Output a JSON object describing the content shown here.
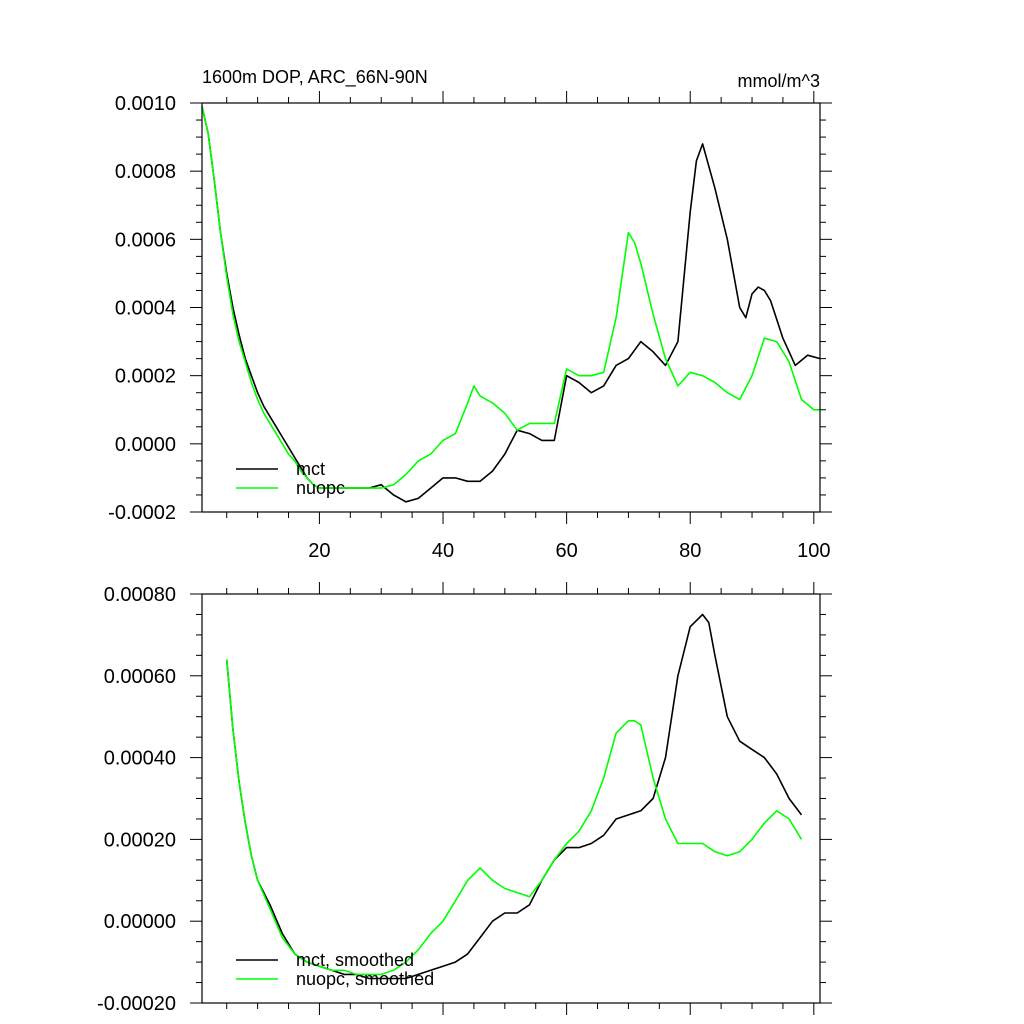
{
  "chart_data": [
    {
      "type": "line",
      "title": "1600m DOP, ARC_66N-90N",
      "units": "mmol/m^3",
      "xlabel": "",
      "ylabel": "",
      "xlim": [
        1,
        101
      ],
      "ylim": [
        -0.0002,
        0.001
      ],
      "xticks": [
        20,
        40,
        60,
        80,
        100
      ],
      "xtick_labels": [
        "20",
        "40",
        "60",
        "80",
        "100"
      ],
      "yticks": [
        -0.0002,
        0,
        0.0002,
        0.0004,
        0.0006,
        0.0008,
        0.001
      ],
      "ytick_labels": [
        "-0.0002",
        "0.0000",
        "0.0002",
        "0.0004",
        "0.0006",
        "0.0008",
        "0.0010"
      ],
      "legend_position": "bottom-left",
      "series": [
        {
          "name": "mct",
          "color": "#000000",
          "x": [
            1,
            2,
            3,
            4,
            5,
            6,
            7,
            8,
            9,
            10,
            11,
            12,
            13,
            14,
            15,
            16,
            17,
            18,
            19,
            20,
            22,
            24,
            26,
            28,
            30,
            32,
            34,
            36,
            38,
            40,
            42,
            44,
            46,
            48,
            50,
            52,
            54,
            56,
            58,
            60,
            62,
            64,
            66,
            68,
            70,
            72,
            74,
            76,
            78,
            80,
            81,
            82,
            84,
            86,
            88,
            89,
            90,
            91,
            92,
            93,
            95,
            97,
            99,
            101
          ],
          "y": [
            0.00099,
            0.00091,
            0.00077,
            0.00062,
            0.0005,
            0.0004,
            0.00032,
            0.00025,
            0.0002,
            0.00015,
            0.00011,
            8e-05,
            5e-05,
            2e-05,
            -1e-05,
            -4e-05,
            -7e-05,
            -0.0001,
            -0.00012,
            -0.00013,
            -0.00013,
            -0.00013,
            -0.00013,
            -0.00013,
            -0.00012,
            -0.00015,
            -0.00017,
            -0.00016,
            -0.00013,
            -0.0001,
            -0.0001,
            -0.00011,
            -0.00011,
            -8e-05,
            -3e-05,
            4e-05,
            3e-05,
            1e-05,
            1e-05,
            0.0002,
            0.00018,
            0.00015,
            0.00017,
            0.00023,
            0.00025,
            0.0003,
            0.00027,
            0.00023,
            0.0003,
            0.00068,
            0.00083,
            0.00088,
            0.00075,
            0.0006,
            0.0004,
            0.00037,
            0.00044,
            0.00046,
            0.00045,
            0.00042,
            0.00031,
            0.00023,
            0.00026,
            0.00025
          ]
        },
        {
          "name": "nuopc",
          "color": "#00ff00",
          "x": [
            1,
            2,
            3,
            4,
            5,
            6,
            7,
            8,
            9,
            10,
            11,
            12,
            13,
            14,
            15,
            16,
            17,
            18,
            19,
            20,
            22,
            24,
            26,
            28,
            30,
            32,
            34,
            36,
            38,
            40,
            42,
            44,
            45,
            46,
            48,
            50,
            52,
            54,
            56,
            58,
            60,
            62,
            64,
            66,
            68,
            70,
            71,
            72,
            74,
            76,
            78,
            80,
            82,
            84,
            86,
            88,
            90,
            92,
            94,
            96,
            98,
            100,
            101
          ],
          "y": [
            0.00099,
            0.00091,
            0.00077,
            0.00062,
            0.00049,
            0.00038,
            0.0003,
            0.00024,
            0.00018,
            0.00013,
            9e-05,
            6e-05,
            3e-05,
            0,
            -3e-05,
            -5e-05,
            -8e-05,
            -0.0001,
            -0.00012,
            -0.00013,
            -0.00013,
            -0.00013,
            -0.00013,
            -0.00013,
            -0.00013,
            -0.00012,
            -9e-05,
            -5e-05,
            -3e-05,
            1e-05,
            3e-05,
            0.00012,
            0.00017,
            0.00014,
            0.00012,
            9e-05,
            4e-05,
            6e-05,
            6e-05,
            6e-05,
            0.00022,
            0.0002,
            0.0002,
            0.00021,
            0.00037,
            0.00062,
            0.00059,
            0.00053,
            0.00038,
            0.00025,
            0.00017,
            0.00021,
            0.0002,
            0.00018,
            0.00015,
            0.00013,
            0.0002,
            0.00031,
            0.0003,
            0.00024,
            0.00013,
            0.0001,
            0.0001
          ]
        }
      ]
    },
    {
      "type": "line",
      "title": "",
      "xlabel": "",
      "ylabel": "",
      "xlim": [
        1,
        101
      ],
      "ylim": [
        -0.0002,
        0.0008
      ],
      "xticks": [
        20,
        40,
        60,
        80,
        100
      ],
      "yticks": [
        -0.0002,
        0,
        0.0002,
        0.0004,
        0.0006,
        0.0008
      ],
      "ytick_labels": [
        "-0.00020",
        "0.00000",
        "0.00020",
        "0.00040",
        "0.00060",
        "0.00080"
      ],
      "legend_position": "bottom-left",
      "series": [
        {
          "name": "mct, smoothed",
          "color": "#000000",
          "x": [
            5,
            6,
            7,
            8,
            9,
            10,
            12,
            14,
            16,
            18,
            20,
            22,
            24,
            26,
            28,
            30,
            32,
            34,
            36,
            38,
            40,
            42,
            44,
            46,
            48,
            50,
            52,
            54,
            56,
            58,
            60,
            62,
            64,
            66,
            68,
            70,
            72,
            74,
            76,
            78,
            80,
            82,
            83,
            84,
            86,
            88,
            90,
            92,
            94,
            96,
            98
          ],
          "y": [
            0.00064,
            0.00047,
            0.00034,
            0.00024,
            0.00016,
            0.0001,
            4e-05,
            -3e-05,
            -8e-05,
            -0.0001,
            -0.00011,
            -0.00012,
            -0.00013,
            -0.00013,
            -0.00014,
            -0.00014,
            -0.00014,
            -0.00014,
            -0.00013,
            -0.00012,
            -0.00011,
            -0.0001,
            -8e-05,
            -4e-05,
            0,
            2e-05,
            2e-05,
            4e-05,
            0.0001,
            0.00015,
            0.00018,
            0.00018,
            0.00019,
            0.00021,
            0.00025,
            0.00026,
            0.00027,
            0.0003,
            0.0004,
            0.0006,
            0.00072,
            0.00075,
            0.00073,
            0.00065,
            0.0005,
            0.00044,
            0.00042,
            0.0004,
            0.00036,
            0.0003,
            0.00026
          ]
        },
        {
          "name": "nuopc, smoothed",
          "color": "#00ff00",
          "x": [
            5,
            6,
            7,
            8,
            9,
            10,
            12,
            14,
            16,
            18,
            20,
            22,
            24,
            26,
            28,
            30,
            32,
            34,
            36,
            38,
            40,
            42,
            44,
            46,
            48,
            50,
            52,
            54,
            56,
            58,
            60,
            62,
            64,
            66,
            68,
            70,
            71,
            72,
            74,
            76,
            78,
            80,
            82,
            84,
            86,
            88,
            90,
            92,
            94,
            96,
            98
          ],
          "y": [
            0.00064,
            0.00047,
            0.00034,
            0.00024,
            0.00016,
            0.0001,
            3e-05,
            -4e-05,
            -8e-05,
            -0.0001,
            -0.00011,
            -0.00012,
            -0.00012,
            -0.00013,
            -0.00013,
            -0.00013,
            -0.00012,
            -0.0001,
            -7e-05,
            -3e-05,
            0,
            5e-05,
            0.0001,
            0.00013,
            0.0001,
            8e-05,
            7e-05,
            6e-05,
            0.0001,
            0.00015,
            0.00019,
            0.00022,
            0.00027,
            0.00035,
            0.00046,
            0.00049,
            0.00049,
            0.00048,
            0.00035,
            0.00025,
            0.00019,
            0.00019,
            0.00019,
            0.00017,
            0.00016,
            0.00017,
            0.0002,
            0.00024,
            0.00027,
            0.00025,
            0.0002
          ]
        }
      ]
    }
  ]
}
